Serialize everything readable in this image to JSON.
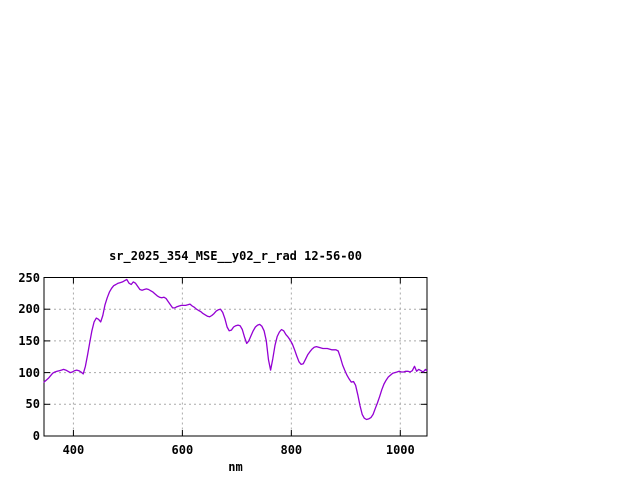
{
  "chart_data": {
    "type": "line",
    "title": "sr_2025_354_MSE__y02_r_rad 12-56-00",
    "xlabel": "nm",
    "ylabel": "",
    "xlim": [
      346,
      1049
    ],
    "ylim": [
      0,
      250
    ],
    "x_ticks": [
      400,
      600,
      800,
      1000
    ],
    "y_ticks": [
      0,
      50,
      100,
      150,
      200,
      250
    ],
    "grid": true,
    "legend_position": "none",
    "line_color": "#9400d3",
    "grid_color": "#aaaaaa",
    "border_color": "#000000",
    "series": [
      {
        "name": "sr_2025_354_MSE__y02_r_rad 12-56-00",
        "points": [
          [
            346,
            85
          ],
          [
            350,
            88
          ],
          [
            354,
            91
          ],
          [
            358,
            95
          ],
          [
            362,
            99
          ],
          [
            366,
            101
          ],
          [
            370,
            102
          ],
          [
            374,
            103
          ],
          [
            378,
            104
          ],
          [
            382,
            105
          ],
          [
            386,
            104
          ],
          [
            390,
            102
          ],
          [
            394,
            100
          ],
          [
            398,
            101
          ],
          [
            402,
            103
          ],
          [
            406,
            104
          ],
          [
            410,
            103
          ],
          [
            414,
            101
          ],
          [
            418,
            98
          ],
          [
            422,
            110
          ],
          [
            426,
            128
          ],
          [
            430,
            148
          ],
          [
            434,
            166
          ],
          [
            438,
            180
          ],
          [
            442,
            186
          ],
          [
            446,
            184
          ],
          [
            450,
            180
          ],
          [
            454,
            190
          ],
          [
            458,
            207
          ],
          [
            462,
            218
          ],
          [
            466,
            227
          ],
          [
            470,
            233
          ],
          [
            474,
            237
          ],
          [
            478,
            239
          ],
          [
            482,
            241
          ],
          [
            486,
            242
          ],
          [
            490,
            243
          ],
          [
            494,
            245
          ],
          [
            498,
            247
          ],
          [
            502,
            241
          ],
          [
            506,
            239
          ],
          [
            510,
            243
          ],
          [
            514,
            241
          ],
          [
            518,
            236
          ],
          [
            522,
            231
          ],
          [
            526,
            230
          ],
          [
            530,
            231
          ],
          [
            534,
            232
          ],
          [
            538,
            231
          ],
          [
            542,
            229
          ],
          [
            546,
            227
          ],
          [
            550,
            224
          ],
          [
            554,
            221
          ],
          [
            558,
            219
          ],
          [
            562,
            218
          ],
          [
            566,
            219
          ],
          [
            570,
            217
          ],
          [
            574,
            212
          ],
          [
            578,
            207
          ],
          [
            582,
            202
          ],
          [
            586,
            202
          ],
          [
            590,
            204
          ],
          [
            594,
            205
          ],
          [
            598,
            206
          ],
          [
            602,
            206
          ],
          [
            606,
            206
          ],
          [
            610,
            207
          ],
          [
            614,
            208
          ],
          [
            618,
            205
          ],
          [
            622,
            203
          ],
          [
            626,
            200
          ],
          [
            630,
            198
          ],
          [
            634,
            196
          ],
          [
            638,
            193
          ],
          [
            642,
            191
          ],
          [
            646,
            189
          ],
          [
            650,
            188
          ],
          [
            654,
            190
          ],
          [
            658,
            193
          ],
          [
            662,
            197
          ],
          [
            666,
            199
          ],
          [
            670,
            200
          ],
          [
            674,
            195
          ],
          [
            678,
            185
          ],
          [
            682,
            172
          ],
          [
            686,
            166
          ],
          [
            690,
            167
          ],
          [
            694,
            172
          ],
          [
            698,
            174
          ],
          [
            702,
            175
          ],
          [
            706,
            174
          ],
          [
            710,
            168
          ],
          [
            714,
            156
          ],
          [
            718,
            146
          ],
          [
            722,
            150
          ],
          [
            726,
            158
          ],
          [
            730,
            166
          ],
          [
            734,
            172
          ],
          [
            738,
            175
          ],
          [
            742,
            176
          ],
          [
            746,
            173
          ],
          [
            750,
            166
          ],
          [
            754,
            150
          ],
          [
            758,
            120
          ],
          [
            762,
            104
          ],
          [
            766,
            122
          ],
          [
            770,
            143
          ],
          [
            774,
            157
          ],
          [
            778,
            164
          ],
          [
            782,
            168
          ],
          [
            786,
            166
          ],
          [
            790,
            160
          ],
          [
            794,
            156
          ],
          [
            798,
            151
          ],
          [
            802,
            145
          ],
          [
            806,
            136
          ],
          [
            810,
            126
          ],
          [
            814,
            117
          ],
          [
            818,
            113
          ],
          [
            822,
            114
          ],
          [
            826,
            121
          ],
          [
            830,
            128
          ],
          [
            834,
            133
          ],
          [
            838,
            137
          ],
          [
            842,
            140
          ],
          [
            846,
            141
          ],
          [
            850,
            140
          ],
          [
            854,
            139
          ],
          [
            858,
            138
          ],
          [
            862,
            138
          ],
          [
            866,
            138
          ],
          [
            870,
            137
          ],
          [
            874,
            136
          ],
          [
            878,
            136
          ],
          [
            882,
            136
          ],
          [
            886,
            134
          ],
          [
            890,
            124
          ],
          [
            894,
            112
          ],
          [
            898,
            104
          ],
          [
            902,
            96
          ],
          [
            906,
            90
          ],
          [
            910,
            85
          ],
          [
            914,
            86
          ],
          [
            918,
            80
          ],
          [
            922,
            65
          ],
          [
            926,
            48
          ],
          [
            930,
            34
          ],
          [
            934,
            28
          ],
          [
            938,
            26
          ],
          [
            942,
            27
          ],
          [
            946,
            29
          ],
          [
            950,
            34
          ],
          [
            954,
            43
          ],
          [
            958,
            52
          ],
          [
            962,
            62
          ],
          [
            966,
            73
          ],
          [
            970,
            82
          ],
          [
            974,
            88
          ],
          [
            978,
            93
          ],
          [
            982,
            96
          ],
          [
            986,
            99
          ],
          [
            990,
            100
          ],
          [
            994,
            101
          ],
          [
            998,
            102
          ],
          [
            1002,
            101
          ],
          [
            1006,
            101
          ],
          [
            1010,
            102
          ],
          [
            1014,
            102
          ],
          [
            1018,
            101
          ],
          [
            1022,
            103
          ],
          [
            1026,
            110
          ],
          [
            1030,
            102
          ],
          [
            1034,
            105
          ],
          [
            1038,
            103
          ],
          [
            1042,
            101
          ],
          [
            1046,
            105
          ],
          [
            1048,
            103
          ]
        ]
      }
    ]
  }
}
